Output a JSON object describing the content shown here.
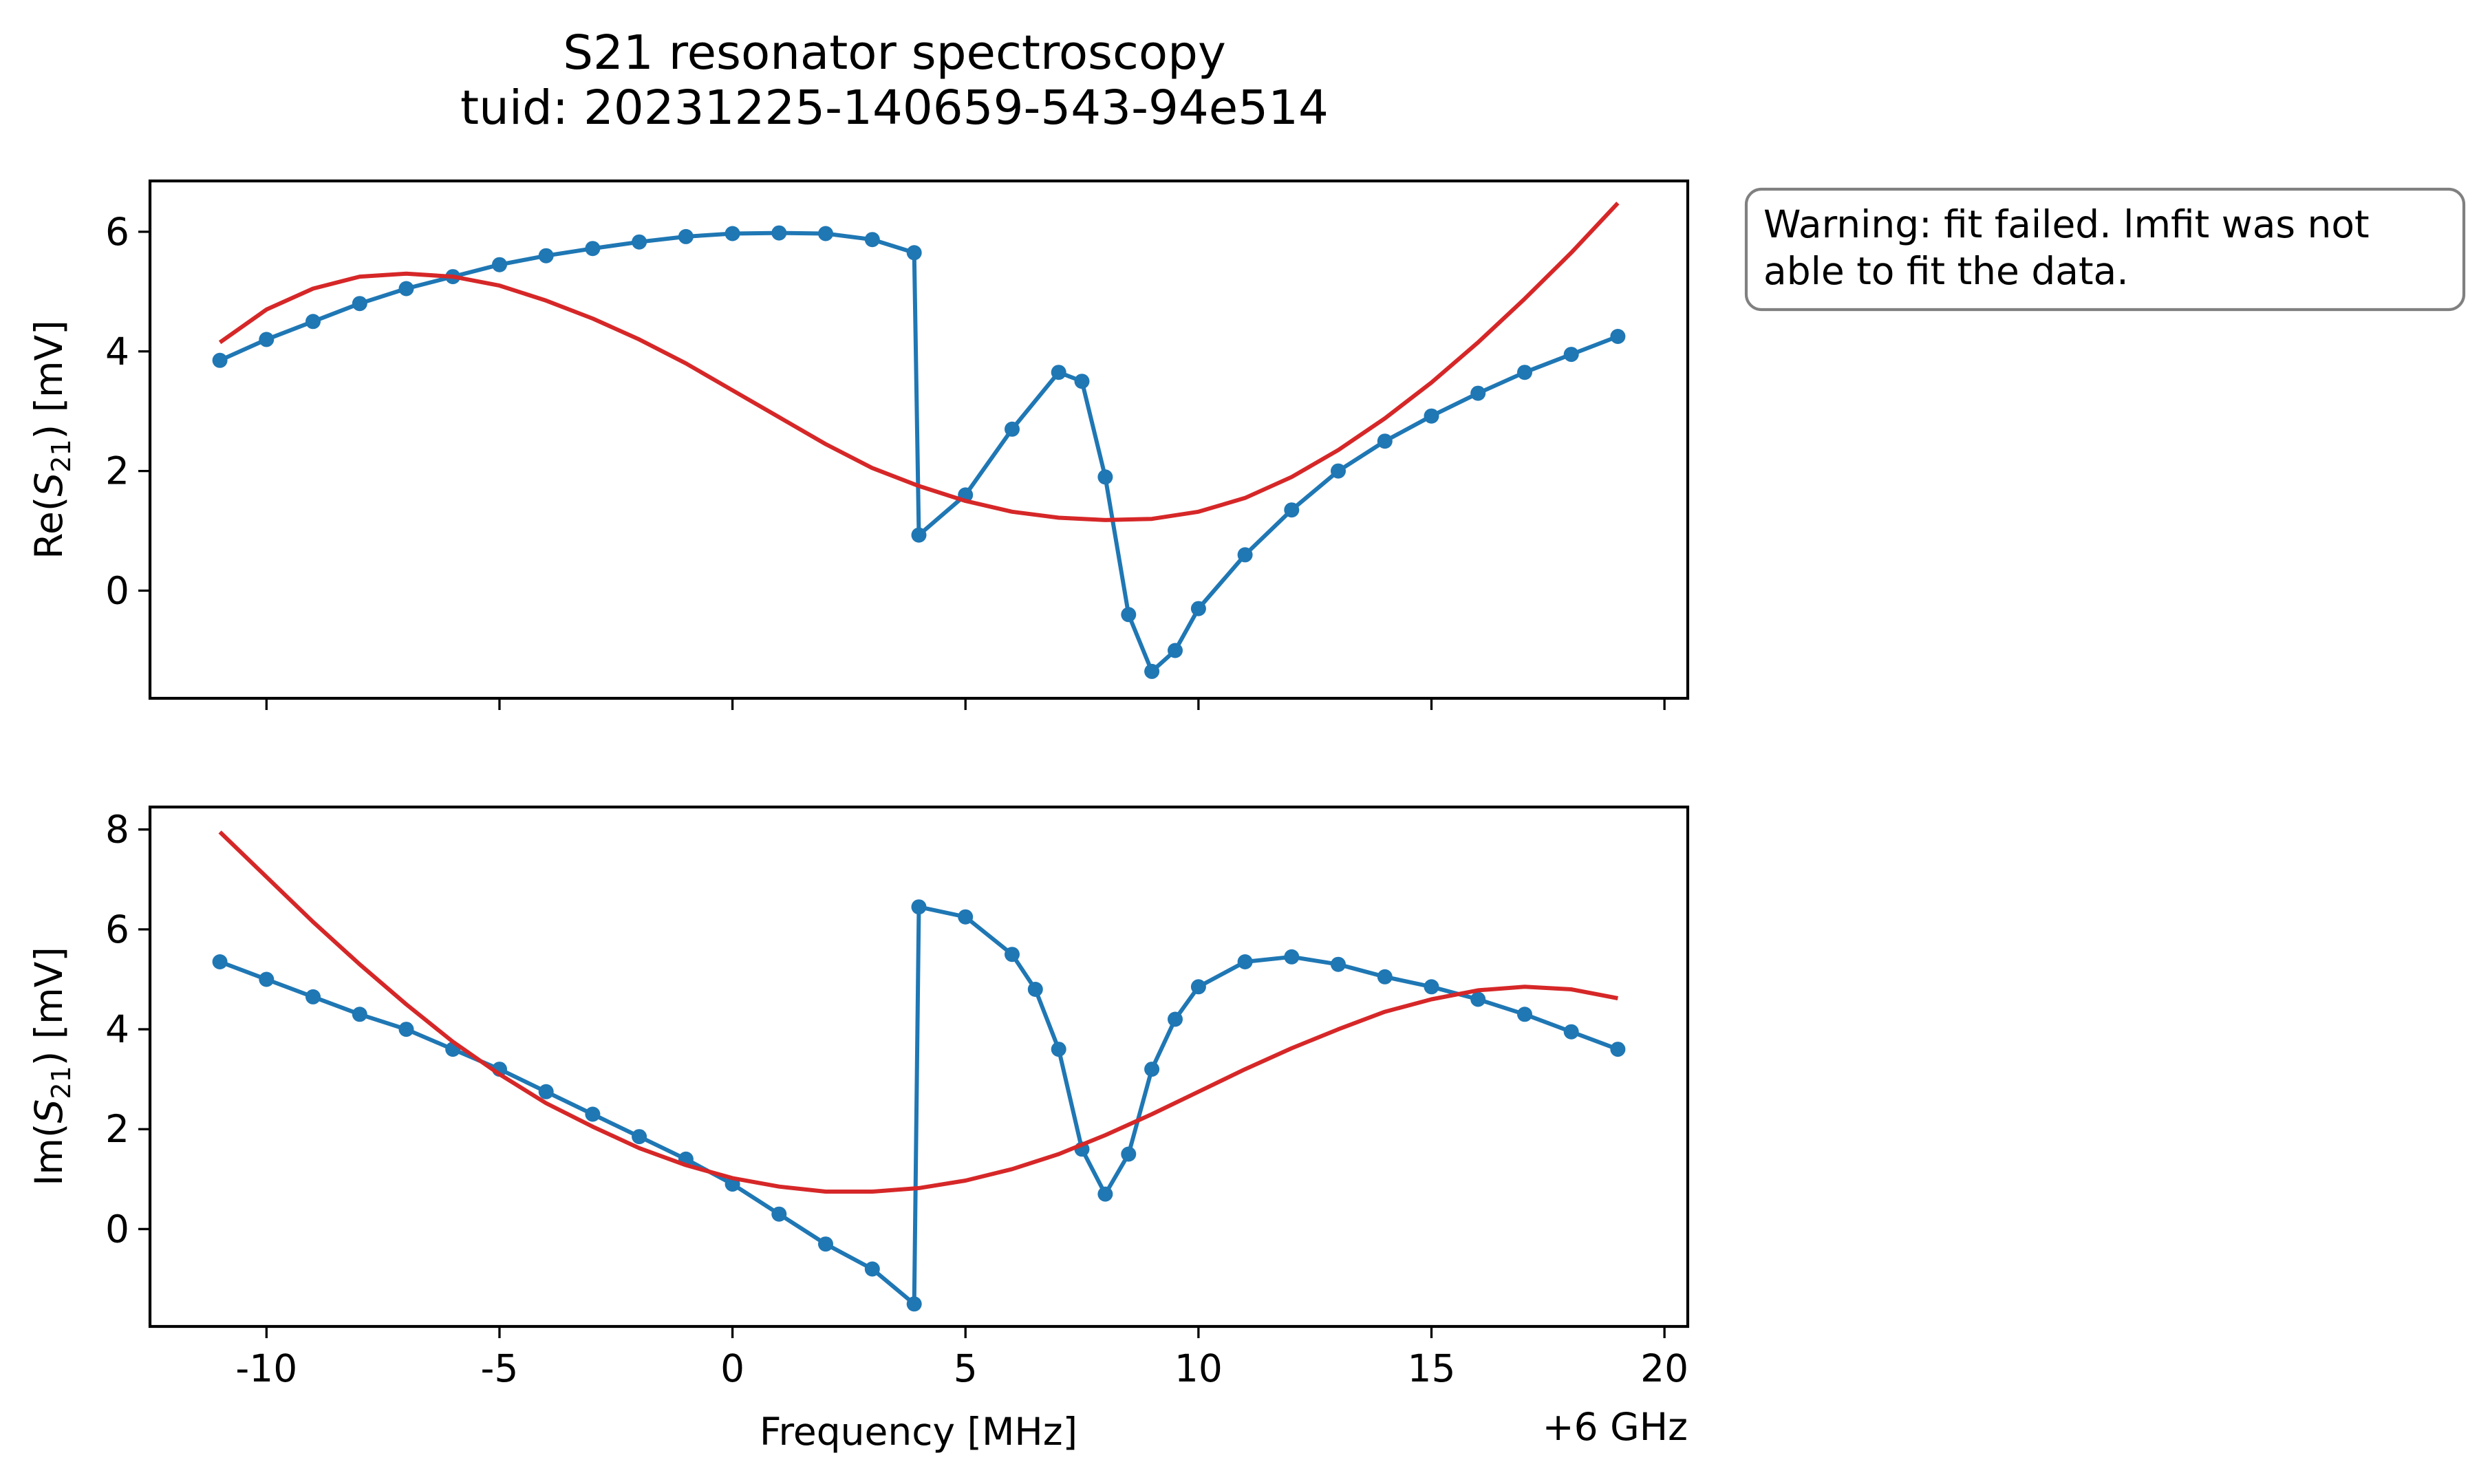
{
  "chart_data": {
    "title": "S21 resonator spectroscopy",
    "subtitle": "tuid: 20231225-140659-543-94e514",
    "note": {
      "line1": "Warning: fit failed. lmfit was not",
      "line2": "able to fit the data."
    },
    "xlabel": "Frequency [MHz]",
    "x_offset_label": "+6 GHz",
    "colors": {
      "data": "#1f77b4",
      "fit": "#d62728",
      "note_border": "#808080"
    },
    "panels": [
      {
        "type": "line",
        "ylabel_prefix": "Re(",
        "ylabel_sym": "S",
        "ylabel_sub": "21",
        "ylabel_suffix": ") [mV]",
        "xlim": [
          -12.5,
          20.5
        ],
        "ylim": [
          -1.8,
          6.85
        ],
        "xticks": [
          -10,
          -5,
          0,
          5,
          10,
          15,
          20
        ],
        "xtick_labels_visible": false,
        "yticks": [
          0,
          2,
          4,
          6
        ],
        "ytick_labels": [
          "0",
          "2",
          "4",
          "6"
        ],
        "data": [
          [
            -11.0,
            3.85
          ],
          [
            -10.0,
            4.2
          ],
          [
            -9.0,
            4.5
          ],
          [
            -8.0,
            4.8
          ],
          [
            -7.0,
            5.05
          ],
          [
            -6.0,
            5.25
          ],
          [
            -5.0,
            5.45
          ],
          [
            -4.0,
            5.6
          ],
          [
            -3.0,
            5.72
          ],
          [
            -2.0,
            5.83
          ],
          [
            -1.0,
            5.92
          ],
          [
            0.0,
            5.97
          ],
          [
            1.0,
            5.98
          ],
          [
            2.0,
            5.97
          ],
          [
            3.0,
            5.87
          ],
          [
            3.9,
            5.65
          ],
          [
            4.0,
            0.93
          ],
          [
            5.0,
            1.6
          ],
          [
            6.0,
            2.7
          ],
          [
            7.0,
            3.65
          ],
          [
            7.5,
            3.5
          ],
          [
            8.0,
            1.9
          ],
          [
            8.5,
            -0.4
          ],
          [
            9.0,
            -1.35
          ],
          [
            9.5,
            -1.0
          ],
          [
            10.0,
            -0.3
          ],
          [
            11.0,
            0.6
          ],
          [
            12.0,
            1.35
          ],
          [
            13.0,
            2.0
          ],
          [
            14.0,
            2.5
          ],
          [
            15.0,
            2.92
          ],
          [
            16.0,
            3.3
          ],
          [
            17.0,
            3.65
          ],
          [
            18.0,
            3.95
          ],
          [
            19.0,
            4.25
          ]
        ],
        "fit": [
          [
            -11.0,
            4.15
          ],
          [
            -10.0,
            4.7
          ],
          [
            -9.0,
            5.05
          ],
          [
            -8.0,
            5.25
          ],
          [
            -7.0,
            5.3
          ],
          [
            -6.0,
            5.25
          ],
          [
            -5.0,
            5.1
          ],
          [
            -4.0,
            4.85
          ],
          [
            -3.0,
            4.55
          ],
          [
            -2.0,
            4.2
          ],
          [
            -1.0,
            3.8
          ],
          [
            0.0,
            3.35
          ],
          [
            1.0,
            2.9
          ],
          [
            2.0,
            2.45
          ],
          [
            3.0,
            2.05
          ],
          [
            4.0,
            1.75
          ],
          [
            5.0,
            1.5
          ],
          [
            6.0,
            1.32
          ],
          [
            7.0,
            1.22
          ],
          [
            8.0,
            1.18
          ],
          [
            9.0,
            1.2
          ],
          [
            10.0,
            1.32
          ],
          [
            11.0,
            1.55
          ],
          [
            12.0,
            1.9
          ],
          [
            13.0,
            2.35
          ],
          [
            14.0,
            2.88
          ],
          [
            15.0,
            3.48
          ],
          [
            16.0,
            4.15
          ],
          [
            17.0,
            4.88
          ],
          [
            18.0,
            5.65
          ],
          [
            19.0,
            6.48
          ]
        ]
      },
      {
        "type": "line",
        "ylabel_prefix": "Im(",
        "ylabel_sym": "S",
        "ylabel_sub": "21",
        "ylabel_suffix": ") [mV]",
        "xlim": [
          -12.5,
          20.5
        ],
        "ylim": [
          -1.95,
          8.45
        ],
        "xticks": [
          -10,
          -5,
          0,
          5,
          10,
          15,
          20
        ],
        "xtick_labels": [
          "-10",
          "-5",
          "0",
          "5",
          "10",
          "15",
          "20"
        ],
        "yticks": [
          0,
          2,
          4,
          6,
          8
        ],
        "ytick_labels": [
          "0",
          "2",
          "4",
          "6",
          "8"
        ],
        "data": [
          [
            -11.0,
            5.35
          ],
          [
            -10.0,
            5.0
          ],
          [
            -9.0,
            4.65
          ],
          [
            -8.0,
            4.3
          ],
          [
            -7.0,
            4.0
          ],
          [
            -6.0,
            3.6
          ],
          [
            -5.0,
            3.2
          ],
          [
            -4.0,
            2.75
          ],
          [
            -3.0,
            2.3
          ],
          [
            -2.0,
            1.85
          ],
          [
            -1.0,
            1.4
          ],
          [
            0.0,
            0.9
          ],
          [
            1.0,
            0.3
          ],
          [
            2.0,
            -0.3
          ],
          [
            3.0,
            -0.8
          ],
          [
            3.9,
            -1.5
          ],
          [
            4.0,
            6.45
          ],
          [
            5.0,
            6.25
          ],
          [
            6.0,
            5.5
          ],
          [
            6.5,
            4.8
          ],
          [
            7.0,
            3.6
          ],
          [
            7.5,
            1.6
          ],
          [
            8.0,
            0.7
          ],
          [
            8.5,
            1.5
          ],
          [
            9.0,
            3.2
          ],
          [
            9.5,
            4.2
          ],
          [
            10.0,
            4.85
          ],
          [
            11.0,
            5.35
          ],
          [
            12.0,
            5.45
          ],
          [
            13.0,
            5.3
          ],
          [
            14.0,
            5.05
          ],
          [
            15.0,
            4.85
          ],
          [
            16.0,
            4.6
          ],
          [
            17.0,
            4.3
          ],
          [
            18.0,
            3.95
          ],
          [
            19.0,
            3.6
          ]
        ],
        "fit": [
          [
            -11.0,
            7.95
          ],
          [
            -10.0,
            7.05
          ],
          [
            -9.0,
            6.15
          ],
          [
            -8.0,
            5.3
          ],
          [
            -7.0,
            4.5
          ],
          [
            -6.0,
            3.75
          ],
          [
            -5.0,
            3.1
          ],
          [
            -4.0,
            2.52
          ],
          [
            -3.0,
            2.05
          ],
          [
            -2.0,
            1.62
          ],
          [
            -1.0,
            1.28
          ],
          [
            0.0,
            1.02
          ],
          [
            1.0,
            0.85
          ],
          [
            2.0,
            0.75
          ],
          [
            3.0,
            0.75
          ],
          [
            4.0,
            0.82
          ],
          [
            5.0,
            0.97
          ],
          [
            6.0,
            1.2
          ],
          [
            7.0,
            1.5
          ],
          [
            8.0,
            1.88
          ],
          [
            9.0,
            2.3
          ],
          [
            10.0,
            2.75
          ],
          [
            11.0,
            3.2
          ],
          [
            12.0,
            3.62
          ],
          [
            13.0,
            4.0
          ],
          [
            14.0,
            4.35
          ],
          [
            15.0,
            4.6
          ],
          [
            16.0,
            4.78
          ],
          [
            17.0,
            4.85
          ],
          [
            18.0,
            4.8
          ],
          [
            19.0,
            4.62
          ]
        ]
      }
    ]
  }
}
